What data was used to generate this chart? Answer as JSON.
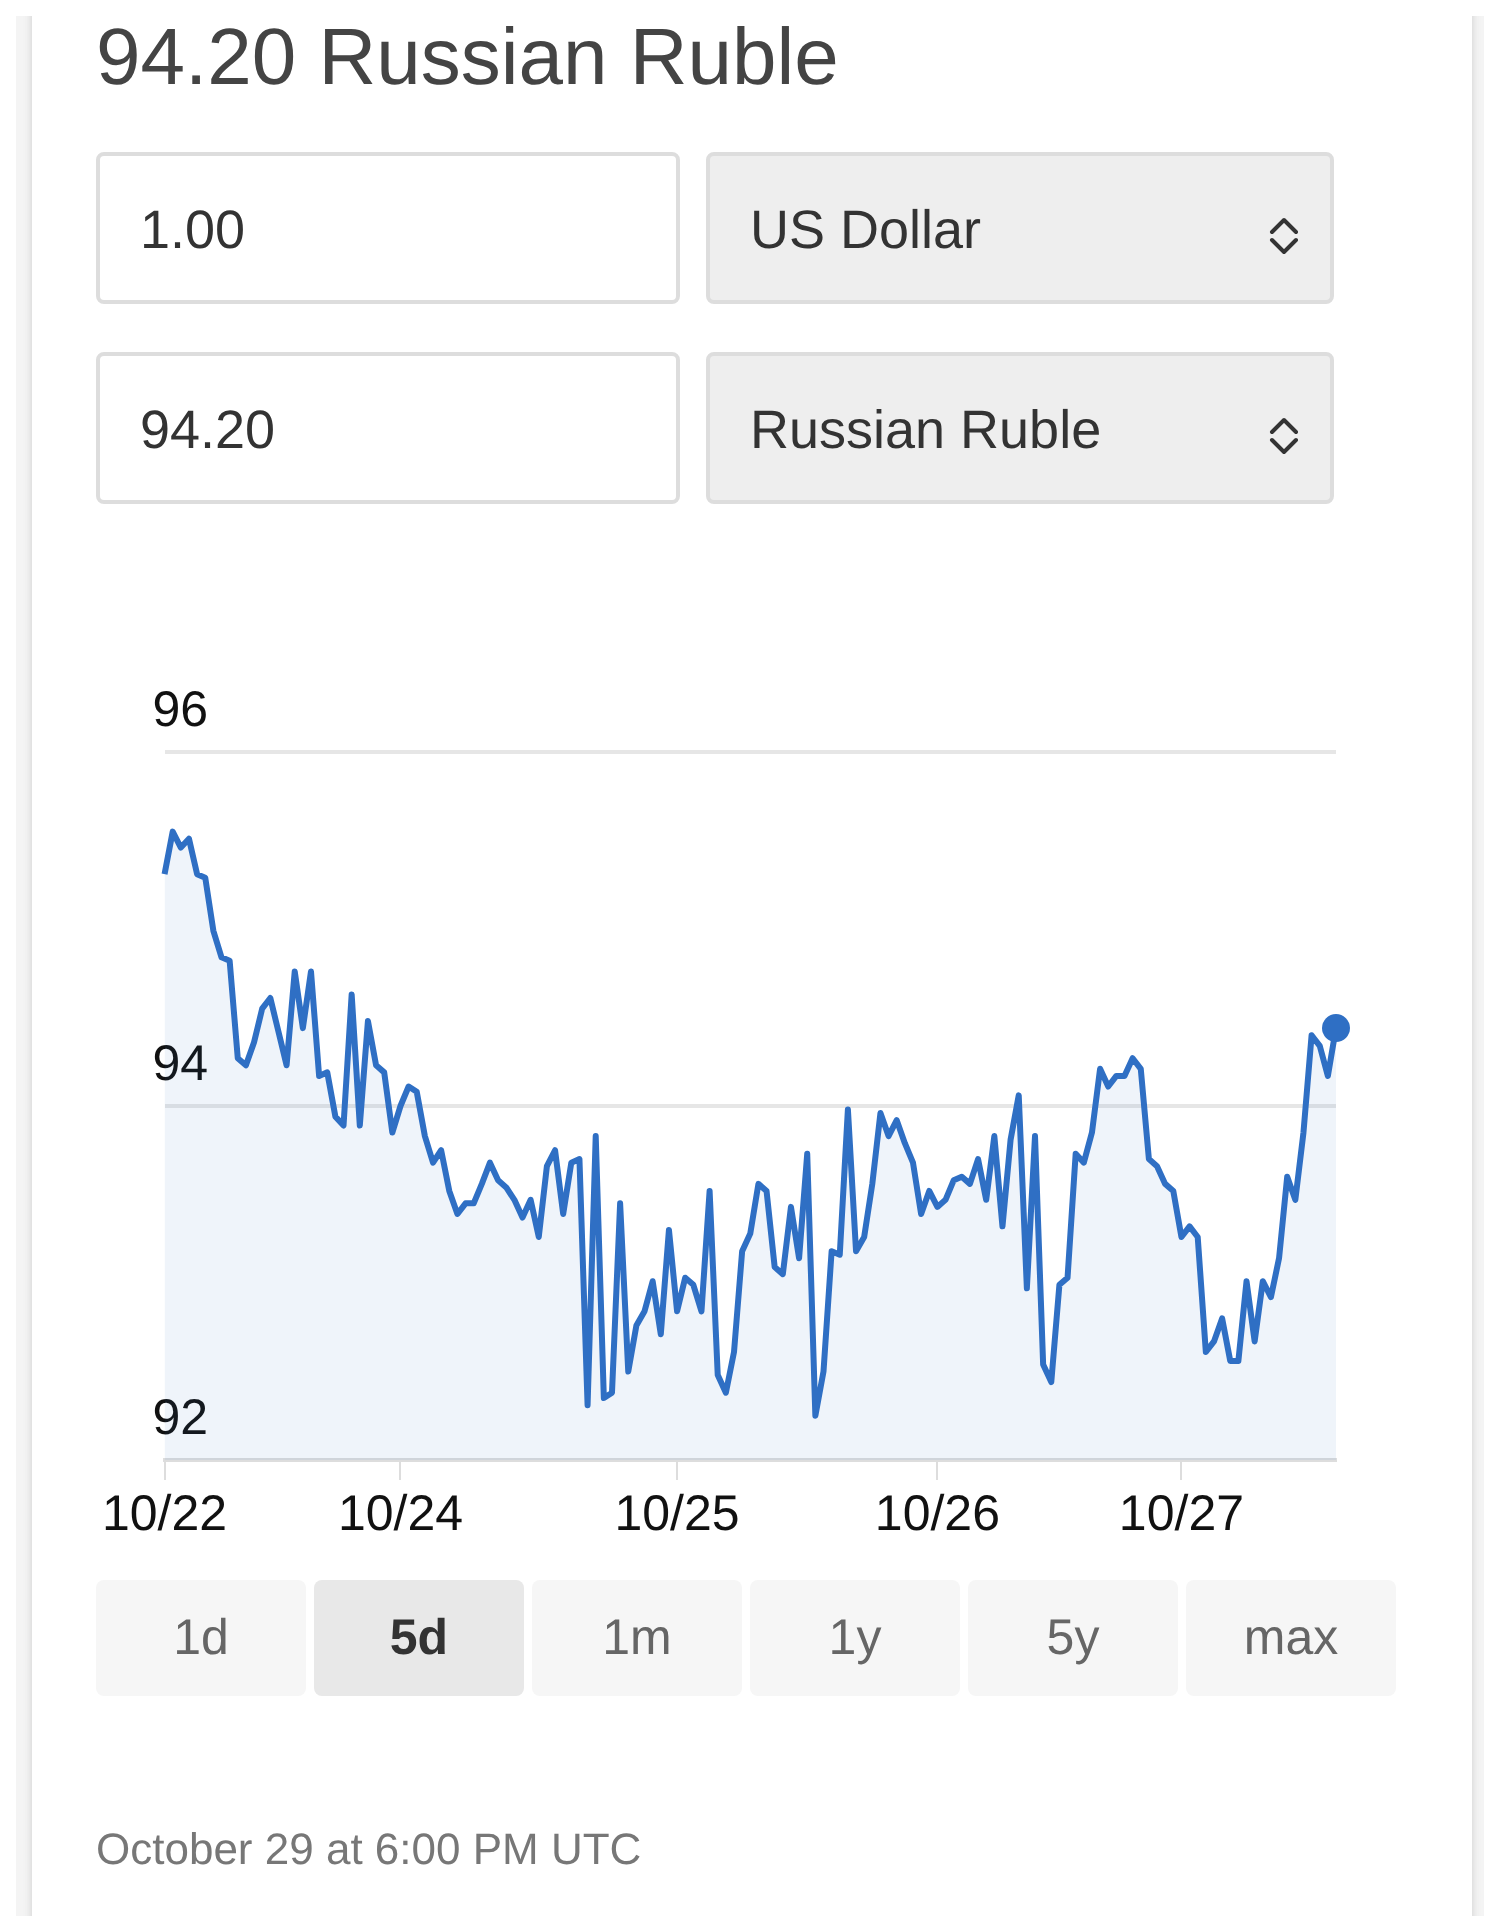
{
  "chart_data": {
    "type": "area",
    "title": "94.20 Russian Ruble",
    "categories": [
      "10/22",
      null,
      null,
      null,
      null,
      null,
      null,
      null,
      null,
      null,
      null,
      null,
      null,
      null,
      null,
      null,
      null,
      null,
      null,
      null,
      null,
      null,
      null,
      null,
      null,
      null,
      null,
      null,
      null,
      "10/24",
      null,
      null,
      null,
      null,
      null,
      null,
      null,
      null,
      null,
      null,
      null,
      null,
      null,
      null,
      null,
      null,
      null,
      null,
      null,
      null,
      null,
      null,
      null,
      null,
      null,
      null,
      null,
      null,
      null,
      null,
      null,
      null,
      null,
      "10/25",
      null,
      null,
      null,
      null,
      null,
      null,
      null,
      null,
      null,
      null,
      null,
      null,
      null,
      null,
      null,
      null,
      null,
      null,
      null,
      null,
      null,
      null,
      null,
      null,
      null,
      null,
      null,
      null,
      null,
      null,
      null,
      "10/26",
      null,
      null,
      null,
      null,
      null,
      null,
      null,
      null,
      null,
      null,
      null,
      null,
      null,
      null,
      null,
      null,
      null,
      null,
      null,
      null,
      null,
      null,
      null,
      null,
      null,
      null,
      null,
      null,
      null,
      "10/27",
      null,
      null,
      null,
      null,
      null,
      null,
      null,
      null,
      null,
      null,
      null,
      null,
      null,
      null,
      null,
      null,
      null,
      null,
      null
    ],
    "series": [
      {
        "color": "#2f6fc4",
        "values": [
          95.31,
          95.55,
          95.46,
          95.51,
          95.31,
          95.29,
          94.99,
          94.84,
          94.82,
          94.27,
          94.23,
          94.36,
          94.55,
          94.61,
          94.42,
          94.23,
          94.76,
          94.44,
          94.76,
          94.17,
          94.19,
          93.94,
          93.89,
          94.63,
          93.89,
          94.48,
          94.23,
          94.19,
          93.85,
          94.0,
          94.11,
          94.08,
          93.83,
          93.68,
          93.75,
          93.52,
          93.39,
          93.45,
          93.45,
          93.56,
          93.68,
          93.58,
          93.54,
          93.47,
          93.37,
          93.47,
          93.26,
          93.66,
          93.75,
          93.39,
          93.68,
          93.7,
          92.31,
          93.83,
          92.35,
          92.38,
          93.45,
          92.5,
          92.76,
          92.84,
          93.01,
          92.71,
          93.3,
          92.84,
          93.03,
          92.99,
          92.84,
          93.52,
          92.48,
          92.38,
          92.61,
          93.18,
          93.28,
          93.56,
          93.52,
          93.09,
          93.05,
          93.43,
          93.14,
          93.73,
          92.25,
          92.5,
          93.18,
          93.16,
          93.98,
          93.18,
          93.26,
          93.56,
          93.96,
          93.83,
          93.92,
          93.79,
          93.68,
          93.39,
          93.52,
          93.43,
          93.47,
          93.58,
          93.6,
          93.56,
          93.7,
          93.47,
          93.83,
          93.32,
          93.81,
          94.06,
          92.97,
          93.83,
          92.54,
          92.44,
          92.99,
          93.03,
          93.73,
          93.68,
          93.85,
          94.21,
          94.11,
          94.17,
          94.17,
          94.27,
          94.21,
          93.7,
          93.66,
          93.56,
          93.52,
          93.26,
          93.32,
          93.26,
          92.61,
          92.67,
          92.8,
          92.56,
          92.56,
          93.01,
          92.67,
          93.01,
          92.92,
          93.14,
          93.6,
          93.47,
          93.85,
          94.4,
          94.34,
          94.17,
          94.44
        ]
      }
    ],
    "ylim": [
      92,
      96
    ],
    "yticks": [
      92,
      94,
      96
    ],
    "grid": "y",
    "annotations": [
      "1.00",
      "US Dollar",
      "94.20",
      "Russian Ruble",
      "1d",
      "5d",
      "1m",
      "1y",
      "5y",
      "max",
      "October 29 at 6:00 PM UTC"
    ]
  }
}
